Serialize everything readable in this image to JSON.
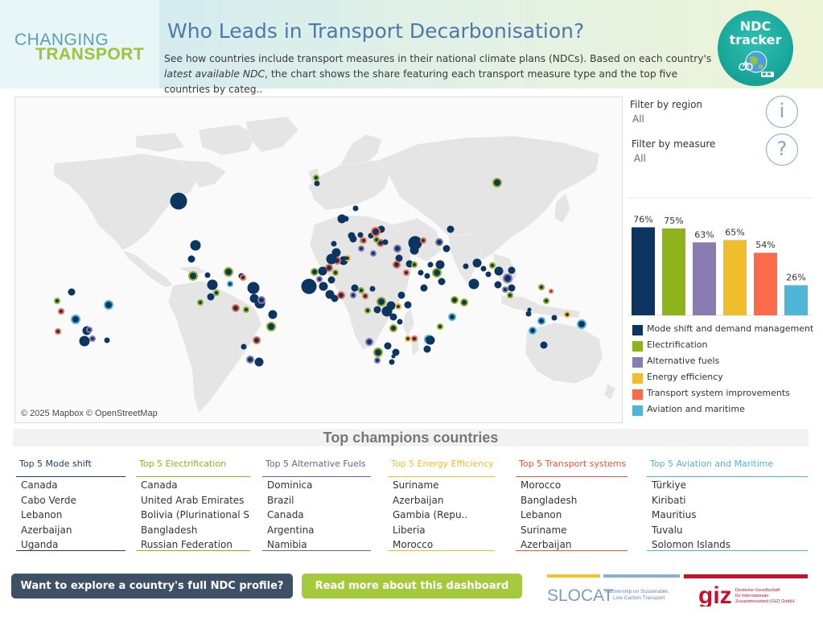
{
  "header": {
    "logo_line1": "CHANGING",
    "logo_line2": "TRANSPORT",
    "title": "Who Leads in Transport Decarbonisation?",
    "subtitle_a": "See how countries include transport measures in their national climate plans (NDCs). Based on each country's ",
    "subtitle_italic": "latest available NDC",
    "subtitle_b": ", the chart shows the share featuring each transport measure type and the top five countries by categ..",
    "badge_line1": "NDC",
    "badge_line2": "tracker"
  },
  "map": {
    "credit": "© 2025 Mapbox © OpenStreetMap"
  },
  "filters": {
    "region_label": "Filter by region",
    "region_value": "All",
    "measure_label": "Filter by measure",
    "measure_value": "All",
    "info_icon": "i",
    "help_icon": "?"
  },
  "chart_data": {
    "type": "bar",
    "categories": [
      "Mode shift and demand management",
      "Electrification",
      "Alternative fuels",
      "Energy efficiency",
      "Transport system improvements",
      "Aviation and maritime"
    ],
    "values": [
      76,
      75,
      63,
      65,
      54,
      26
    ],
    "value_labels": [
      "76%",
      "75%",
      "63%",
      "65%",
      "54%",
      "26%"
    ],
    "ylim": [
      0,
      100
    ],
    "colors": [
      "#0d3561",
      "#8fb31d",
      "#8a7bb3",
      "#f0bd2c",
      "#fb6a4a",
      "#4fb6d8"
    ]
  },
  "champions": {
    "title": "Top champions countries",
    "columns": [
      {
        "heading": "Top 5 Mode shift",
        "color": "#1e3d6b",
        "items": [
          "Canada",
          "Cabo Verde",
          "Lebanon",
          "Azerbaijan",
          "Uganda"
        ]
      },
      {
        "heading": "Top 5 Electrification",
        "color": "#8fb31d",
        "items": [
          "Canada",
          "United Arab Emirates",
          "Bolivia (Plurinational S",
          "Bangladesh",
          "Russian Federation"
        ]
      },
      {
        "heading": "Top 5 Alternative Fuels",
        "color": "#6b5fa0",
        "items": [
          "Dominica",
          "Brazil",
          "Canada",
          "Argentina",
          "Namibia"
        ]
      },
      {
        "heading": "Top 5 Energy Efficiency",
        "color": "#f0bd2c",
        "items": [
          "Suriname",
          "Azerbaijan",
          "Gambia (Repu..",
          "Liberia",
          "Morocco"
        ]
      },
      {
        "heading": "Top 5 Transport systems",
        "color": "#f0563a",
        "items": [
          "Morocco",
          "Bangladesh",
          "Lebanon",
          "Suriname",
          "Azerbaijan"
        ]
      },
      {
        "heading": "Top 5 Aviation and Maritime",
        "color": "#4fb6d8",
        "items": [
          "Türkiye",
          "Kiribati",
          "Mauritius",
          "Tuvalu",
          "Solomon Islands"
        ]
      }
    ]
  },
  "footer": {
    "explore_label": "Want to explore a country's full NDC profile?",
    "read_label": "Read more about this dashboard",
    "slocat_name": "SLOCAT",
    "slocat_tag1": "Partnership on Sustainable,",
    "slocat_tag2": "Low Carbon Transport",
    "giz_name": "giz",
    "giz_tag1": "Deutsche Gesellschaft",
    "giz_tag2": "für Internationale",
    "giz_tag3": "Zusammenarbeit (GIZ) GmbH"
  }
}
